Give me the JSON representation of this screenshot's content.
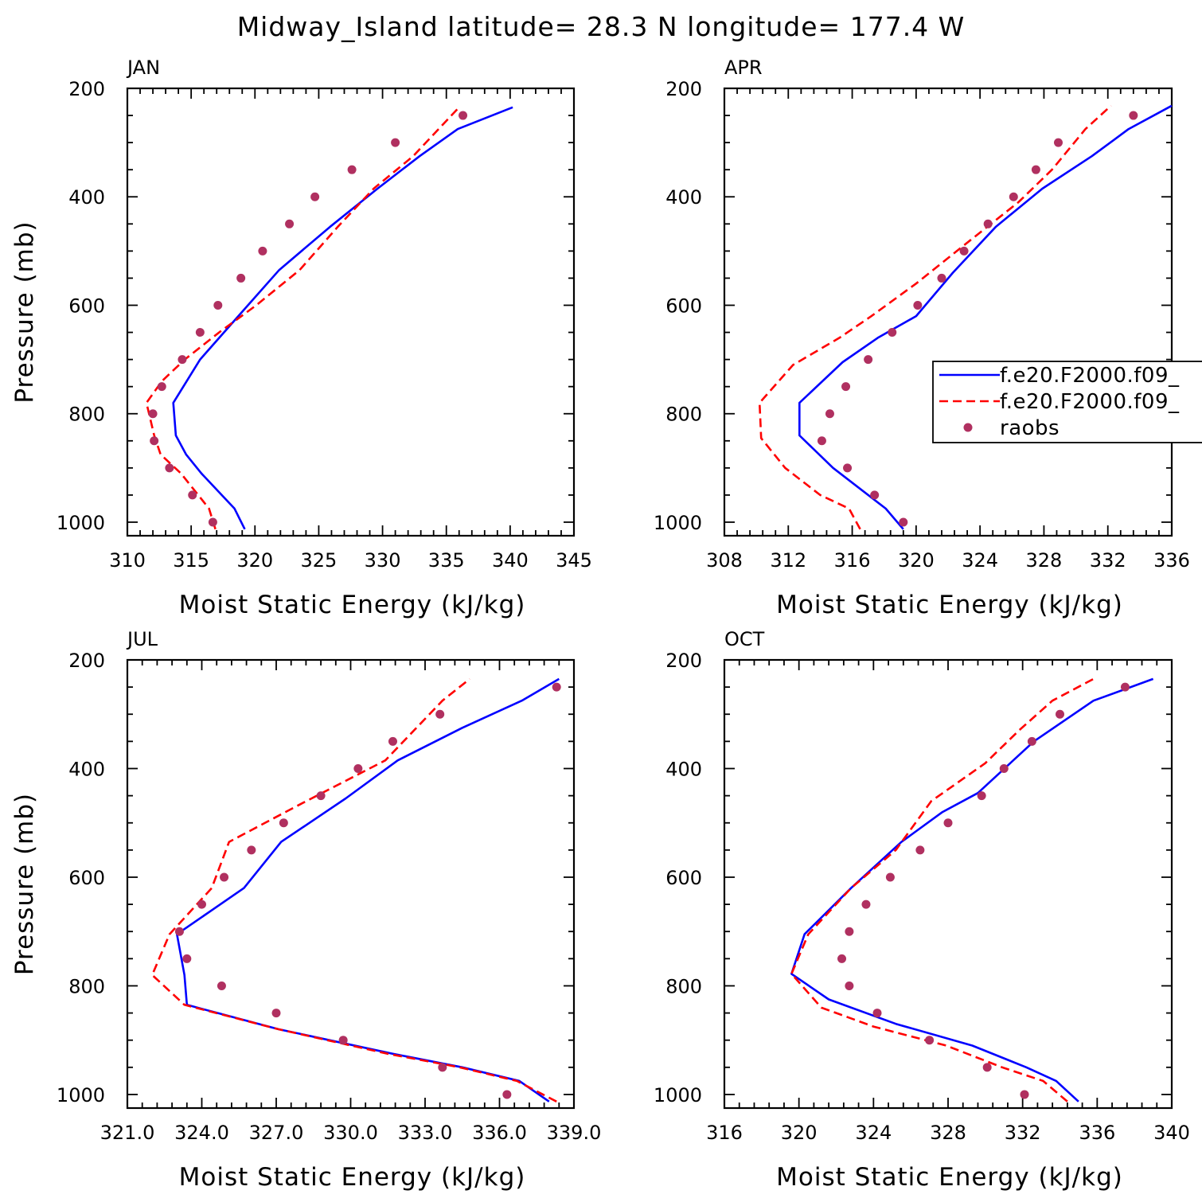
{
  "title": "Midway_Island  latitude= 28.3 N longitude= 177.4 W",
  "colors": {
    "model1": "#0000ff",
    "model2": "#ff0000",
    "raobs": "#b03060",
    "axes": "#000000"
  },
  "legend": {
    "entries": [
      "f.e20.F2000.f09_",
      "f.e20.F2000.f09_",
      "raobs"
    ],
    "placement": "right-middle of APR panel"
  },
  "chart_data": [
    {
      "type": "line",
      "panel_title": "JAN",
      "xlabel": "Moist Static Energy (kJ/kg)",
      "ylabel": "Pressure (mb)",
      "xlim": [
        310,
        345
      ],
      "ylim": [
        1025,
        200
      ],
      "xticks": [
        310,
        315,
        320,
        325,
        330,
        335,
        340,
        345
      ],
      "xtick_labels": [
        "310",
        "315",
        "320",
        "325",
        "330",
        "335",
        "340",
        "345"
      ],
      "yticks": [
        200,
        400,
        600,
        800,
        1000
      ],
      "ytick_labels": [
        "200",
        "400",
        "600",
        "800",
        "1000"
      ],
      "series": [
        {
          "name": "f.e20.F2000.f09_",
          "style": "solid",
          "color": "#0000ff",
          "x": [
            319.2,
            318.4,
            315.8,
            314.6,
            313.8,
            313.6,
            315.7,
            318.7,
            321.9,
            325.9,
            329.6,
            332.9,
            335.9,
            340.2
          ],
          "y": [
            1013,
            975,
            910,
            875,
            840,
            780,
            700,
            620,
            535,
            455,
            385,
            325,
            275,
            235
          ]
        },
        {
          "name": "f.e20.F2000.f09_",
          "style": "dashed",
          "color": "#ff0000",
          "x": [
            316.9,
            316.4,
            314.2,
            312.6,
            312.1,
            311.5,
            312.7,
            314.5,
            317.2,
            320.1,
            323.5,
            326.5,
            329.3,
            332.4,
            336.0
          ],
          "y": [
            1013,
            975,
            910,
            875,
            840,
            780,
            740,
            700,
            650,
            600,
            535,
            455,
            385,
            325,
            235
          ]
        },
        {
          "name": "raobs",
          "style": "markers",
          "color": "#b03060",
          "x": [
            316.7,
            315.1,
            313.3,
            312.1,
            312.0,
            312.7,
            314.3,
            315.7,
            317.1,
            318.9,
            320.6,
            322.7,
            324.7,
            327.6,
            331.0,
            336.3
          ],
          "y": [
            1000,
            950,
            900,
            850,
            800,
            750,
            700,
            650,
            600,
            550,
            500,
            450,
            400,
            350,
            300,
            250
          ]
        }
      ]
    },
    {
      "type": "line",
      "panel_title": "APR",
      "xlabel": "Moist Static Energy (kJ/kg)",
      "ylabel": "",
      "xlim": [
        308,
        336
      ],
      "ylim": [
        1025,
        200
      ],
      "xticks": [
        308,
        312,
        316,
        320,
        324,
        328,
        332,
        336
      ],
      "xtick_labels": [
        "308",
        "312",
        "316",
        "320",
        "324",
        "328",
        "332",
        "336"
      ],
      "yticks": [
        200,
        400,
        600,
        800,
        1000
      ],
      "ytick_labels": [
        "200",
        "400",
        "600",
        "800",
        "1000"
      ],
      "series": [
        {
          "name": "f.e20.F2000.f09_",
          "style": "solid",
          "color": "#0000ff",
          "x": [
            319.2,
            318.1,
            314.8,
            312.7,
            312.7,
            315.4,
            317.6,
            320.0,
            322.3,
            325.0,
            327.9,
            331.0,
            333.3,
            336.0
          ],
          "y": [
            1013,
            975,
            900,
            840,
            780,
            705,
            660,
            620,
            540,
            455,
            385,
            325,
            275,
            232
          ]
        },
        {
          "name": "f.e20.F2000.f09_",
          "style": "dashed",
          "color": "#ff0000",
          "x": [
            316.5,
            315.8,
            314.0,
            311.8,
            310.3,
            310.2,
            312.3,
            315.2,
            317.2,
            320.0,
            323.4,
            326.4,
            328.5,
            330.6,
            332.2
          ],
          "y": [
            1013,
            975,
            950,
            900,
            845,
            780,
            710,
            660,
            620,
            560,
            480,
            410,
            350,
            275,
            232
          ]
        },
        {
          "name": "raobs",
          "style": "markers",
          "color": "#b03060",
          "x": [
            319.2,
            317.4,
            315.7,
            314.1,
            314.6,
            315.6,
            317.0,
            318.5,
            320.1,
            321.6,
            323.0,
            324.5,
            326.1,
            327.5,
            328.9,
            333.6
          ],
          "y": [
            1000,
            950,
            900,
            850,
            800,
            750,
            700,
            650,
            600,
            550,
            500,
            450,
            400,
            350,
            300,
            250
          ]
        }
      ]
    },
    {
      "type": "line",
      "panel_title": "JUL",
      "xlabel": "Moist Static Energy (kJ/kg)",
      "ylabel": "Pressure (mb)",
      "xlim": [
        321.0,
        339.0
      ],
      "ylim": [
        1025,
        200
      ],
      "xticks": [
        321,
        324,
        327,
        330,
        333,
        336,
        339
      ],
      "xtick_labels": [
        "321.0",
        "324.0",
        "327.0",
        "330.0",
        "333.0",
        "336.0",
        "339.0"
      ],
      "yticks": [
        200,
        400,
        600,
        800,
        1000
      ],
      "ytick_labels": [
        "200",
        "400",
        "600",
        "800",
        "1000"
      ],
      "series": [
        {
          "name": "f.e20.F2000.f09_",
          "style": "solid",
          "color": "#0000ff",
          "x": [
            338.0,
            336.8,
            334.5,
            331.7,
            327.1,
            323.4,
            323.3,
            323.0,
            325.7,
            327.2,
            329.8,
            331.9,
            334.5,
            336.9,
            338.4
          ],
          "y": [
            1013,
            975,
            950,
            925,
            880,
            835,
            780,
            705,
            620,
            535,
            455,
            385,
            325,
            275,
            235
          ]
        },
        {
          "name": "f.e20.F2000.f09_",
          "style": "dashed",
          "color": "#ff0000",
          "x": [
            338.3,
            336.7,
            334.4,
            331.5,
            327.1,
            323.3,
            322.0,
            322.7,
            324.4,
            325.1,
            328.0,
            331.4,
            333.7,
            334.8
          ],
          "y": [
            1013,
            975,
            950,
            925,
            880,
            835,
            780,
            705,
            620,
            535,
            465,
            385,
            275,
            235
          ]
        },
        {
          "name": "raobs",
          "style": "markers",
          "color": "#b03060",
          "x": [
            336.3,
            333.7,
            329.7,
            327.0,
            324.8,
            323.4,
            323.1,
            324.0,
            324.9,
            326.0,
            327.3,
            328.8,
            330.3,
            331.7,
            333.6,
            338.3
          ],
          "y": [
            1000,
            950,
            900,
            850,
            800,
            750,
            700,
            650,
            600,
            550,
            500,
            450,
            400,
            350,
            300,
            250
          ]
        }
      ]
    },
    {
      "type": "line",
      "panel_title": "OCT",
      "xlabel": "Moist Static Energy (kJ/kg)",
      "ylabel": "",
      "xlim": [
        316,
        340
      ],
      "ylim": [
        1025,
        200
      ],
      "xticks": [
        316,
        320,
        324,
        328,
        332,
        336,
        340
      ],
      "xtick_labels": [
        "316",
        "320",
        "324",
        "328",
        "332",
        "336",
        "340"
      ],
      "yticks": [
        200,
        400,
        600,
        800,
        1000
      ],
      "ytick_labels": [
        "200",
        "400",
        "600",
        "800",
        "1000"
      ],
      "series": [
        {
          "name": "f.e20.F2000.f09_",
          "style": "solid",
          "color": "#0000ff",
          "x": [
            335.0,
            333.8,
            332.2,
            329.3,
            325.2,
            321.6,
            319.6,
            320.3,
            322.8,
            325.5,
            327.7,
            329.6,
            332.6,
            335.8,
            339.0
          ],
          "y": [
            1013,
            975,
            950,
            910,
            870,
            825,
            778,
            705,
            620,
            535,
            480,
            445,
            350,
            275,
            235
          ]
        },
        {
          "name": "f.e20.F2000.f09_",
          "style": "dashed",
          "color": "#ff0000",
          "x": [
            334.4,
            333.1,
            330.9,
            327.9,
            324.0,
            321.2,
            319.6,
            320.5,
            322.8,
            325.2,
            327.1,
            330.0,
            331.8,
            333.6,
            335.8
          ],
          "y": [
            1013,
            975,
            950,
            910,
            875,
            840,
            778,
            705,
            620,
            550,
            460,
            390,
            330,
            275,
            235
          ]
        },
        {
          "name": "raobs",
          "style": "markers",
          "color": "#b03060",
          "x": [
            332.1,
            330.1,
            327.0,
            324.2,
            322.7,
            322.3,
            322.7,
            323.6,
            324.9,
            326.5,
            328.0,
            329.8,
            331.0,
            332.5,
            334.0,
            337.5
          ],
          "y": [
            1000,
            950,
            900,
            850,
            800,
            750,
            700,
            650,
            600,
            550,
            500,
            450,
            400,
            350,
            300,
            250
          ]
        }
      ]
    }
  ]
}
